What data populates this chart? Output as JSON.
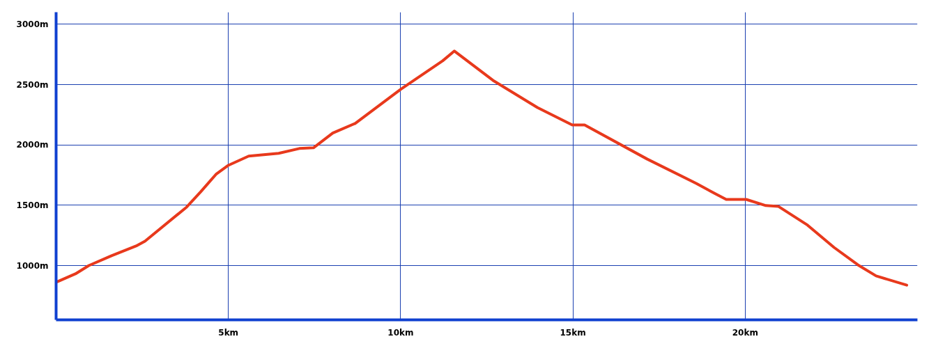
{
  "chart_data": {
    "type": "line",
    "x": [
      0.04,
      0.56,
      0.95,
      1.61,
      2.32,
      2.58,
      3.79,
      4.2,
      4.64,
      5.0,
      5.59,
      6.46,
      7.06,
      7.47,
      8.03,
      8.68,
      10.0,
      11.22,
      11.56,
      12.68,
      13.97,
      14.98,
      15.34,
      17.16,
      18.58,
      19.14,
      19.45,
      20.03,
      20.6,
      20.96,
      21.81,
      22.58,
      23.27,
      23.8,
      24.69
    ],
    "series": [
      {
        "color": "#e8391c",
        "values": [
          867,
          931,
          1000,
          1081,
          1162,
          1202,
          1485,
          1612,
          1756,
          1831,
          1907,
          1930,
          1970,
          1976,
          2098,
          2178,
          2460,
          2697,
          2778,
          2535,
          2310,
          2165,
          2165,
          1882,
          1681,
          1594,
          1548,
          1548,
          1497,
          1491,
          1335,
          1150,
          1006,
          914,
          838
        ]
      }
    ],
    "xlim": [
      0,
      25
    ],
    "ylim": [
      550,
      3100
    ],
    "xticks": [
      {
        "value": 5,
        "label": "5km"
      },
      {
        "value": 10,
        "label": "10km"
      },
      {
        "value": 15,
        "label": "15km"
      },
      {
        "value": 20,
        "label": "20km"
      }
    ],
    "yticks": [
      {
        "value": 1000,
        "label": "1000m"
      },
      {
        "value": 1500,
        "label": "1500m"
      },
      {
        "value": 2000,
        "label": "2000m"
      },
      {
        "value": 2500,
        "label": "2500m"
      },
      {
        "value": 3000,
        "label": "3000m"
      }
    ],
    "grid": true,
    "marker": "none",
    "line_style": "solid"
  }
}
